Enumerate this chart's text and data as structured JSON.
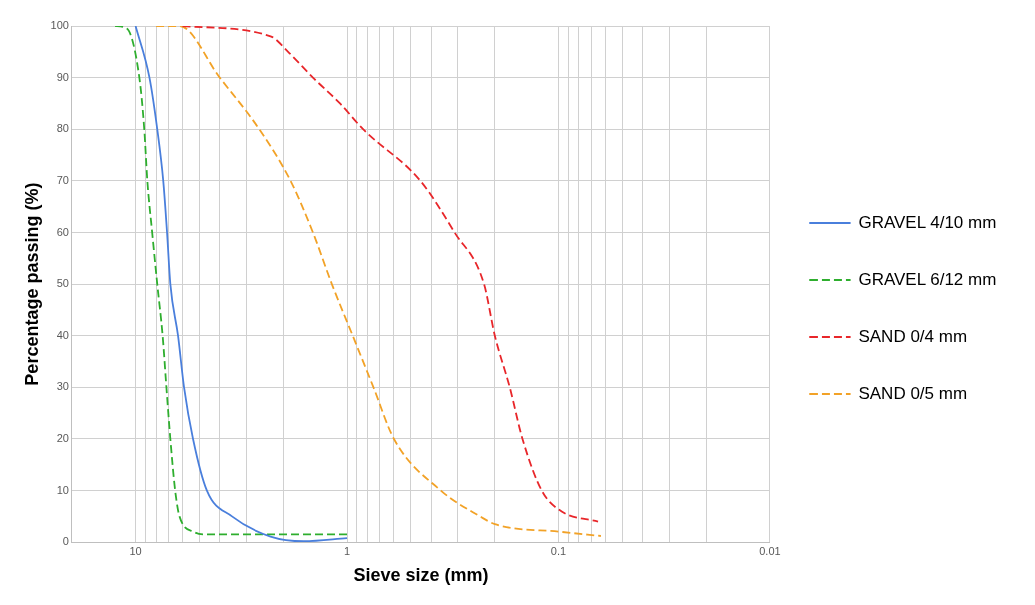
{
  "chart_data": {
    "type": "line",
    "xlabel": "Sieve size (mm)",
    "ylabel": "Percentage passing (%)",
    "log": "x",
    "grid": true,
    "legend": "right",
    "marker": "none",
    "xlim": [
      20,
      0.01
    ],
    "ylim": [
      0,
      100
    ],
    "yticks": [
      0,
      10,
      20,
      30,
      40,
      50,
      60,
      70,
      80,
      90,
      100
    ],
    "xticks": [
      10,
      {
        "value": 9,
        "label": null
      },
      {
        "value": 8,
        "label": null
      },
      {
        "value": 7,
        "label": null
      },
      {
        "value": 6,
        "label": null
      },
      {
        "value": 5,
        "label": null
      },
      {
        "value": 4,
        "label": null
      },
      {
        "value": 3,
        "label": null
      },
      {
        "value": 2,
        "label": null
      },
      1,
      {
        "value": 0.9,
        "label": null
      },
      {
        "value": 0.8,
        "label": null
      },
      {
        "value": 0.7,
        "label": null
      },
      {
        "value": 0.6,
        "label": null
      },
      {
        "value": 0.5,
        "label": null
      },
      {
        "value": 0.4,
        "label": null
      },
      {
        "value": 0.3,
        "label": null
      },
      {
        "value": 0.2,
        "label": null
      },
      0.1,
      {
        "value": 0.09,
        "label": null
      },
      {
        "value": 0.08,
        "label": null
      },
      {
        "value": 0.07,
        "label": null
      },
      {
        "value": 0.06,
        "label": null
      },
      {
        "value": 0.05,
        "label": null
      },
      {
        "value": 0.04,
        "label": null
      },
      {
        "value": 0.03,
        "label": null
      },
      {
        "value": 0.02,
        "label": null
      },
      0.01
    ],
    "series": [
      {
        "name": "GRAVEL 4/10 mm",
        "color": "#4a7fdc",
        "line_style": "solid",
        "x": [
          10,
          8.6,
          7.9,
          7.4,
          7.1,
          6.85,
          6.3,
          5.9,
          5.35,
          4.6,
          3.5,
          2.3,
          1.6,
          1
        ],
        "values": [
          100,
          90,
          80,
          70,
          60,
          50,
          40,
          30,
          20,
          10,
          5,
          1.1,
          0.2,
          0.8
        ]
      },
      {
        "name": "GRAVEL 6/12 mm",
        "color": "#2eae2e",
        "line_style": "dashed",
        "x": [
          12.5,
          11,
          9.6,
          9.1,
          8.8,
          8.35,
          7.9,
          7.45,
          7.15,
          6.85,
          6.5,
          6.2,
          5.3,
          4.6,
          1
        ],
        "values": [
          100,
          99.5,
          90,
          80,
          70,
          60,
          50,
          40,
          30,
          20,
          10,
          5,
          2,
          1.5,
          1.5
        ]
      },
      {
        "name": "SAND 0/4 mm",
        "color": "#e8262a",
        "line_style": "dashed",
        "x": [
          6,
          2.3,
          1.9,
          1.45,
          1.08,
          0.84,
          0.45,
          0.31,
          0.225,
          0.2,
          0.17,
          0.148,
          0.12,
          0.097,
          0.065
        ],
        "values": [
          100,
          98,
          95,
          90,
          85,
          80,
          70,
          60,
          50,
          40,
          30,
          20,
          10,
          6,
          4
        ]
      },
      {
        "name": "SAND 0/5 mm",
        "color": "#f2a227",
        "line_style": "dashed",
        "x": [
          8,
          6.2,
          4,
          2.6,
          1.85,
          1.45,
          1.18,
          0.94,
          0.75,
          0.6,
          0.36,
          0.235,
          0.2,
          0.097,
          0.063
        ],
        "values": [
          100,
          100,
          90,
          80,
          70,
          60,
          50,
          40,
          30,
          20,
          10,
          5,
          3.5,
          2,
          1.2
        ]
      }
    ]
  }
}
